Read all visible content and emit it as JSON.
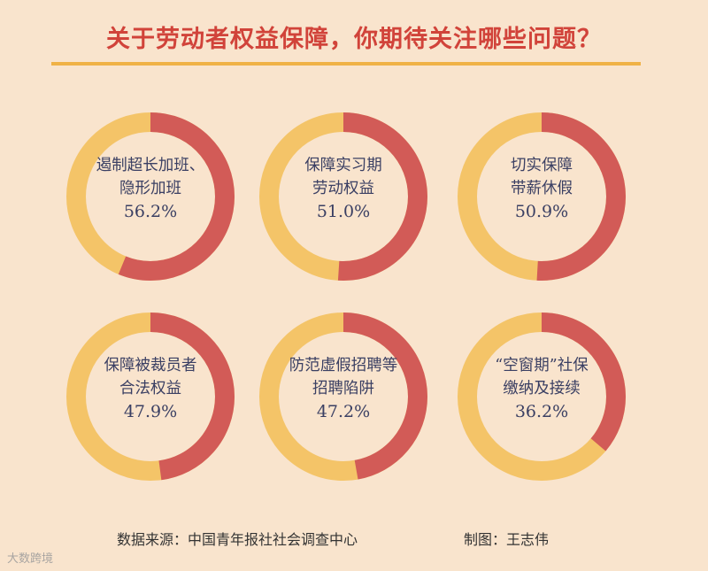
{
  "title": "关于劳动者权益保障，你期待关注哪些问题？",
  "colors": {
    "primary": "#d25b57",
    "remainder": "#f4c468",
    "inner": "#f9e4cd",
    "text": "#3a3f63",
    "title": "#d1433a"
  },
  "chart_data": [
    {
      "type": "pie",
      "lines": [
        "遏制超长加班、",
        "隐形加班"
      ],
      "value": 56.2,
      "pct_label": "56.2%"
    },
    {
      "type": "pie",
      "lines": [
        "保障实习期",
        "劳动权益"
      ],
      "value": 51.0,
      "pct_label": "51.0%"
    },
    {
      "type": "pie",
      "lines": [
        "切实保障",
        "带薪休假"
      ],
      "value": 50.9,
      "pct_label": "50.9%"
    },
    {
      "type": "pie",
      "lines": [
        "保障被裁员者",
        "合法权益"
      ],
      "value": 47.9,
      "pct_label": "47.9%"
    },
    {
      "type": "pie",
      "lines": [
        "防范虚假招聘等",
        "招聘陷阱"
      ],
      "value": 47.2,
      "pct_label": "47.2%"
    },
    {
      "type": "pie",
      "lines": [
        "“空窗期”社保",
        "缴纳及接续"
      ],
      "value": 36.2,
      "pct_label": "36.2%"
    }
  ],
  "footer": {
    "source": "数据来源：中国青年报社社会调查中心",
    "credit": "制图：王志伟"
  },
  "watermark": "大数跨境"
}
